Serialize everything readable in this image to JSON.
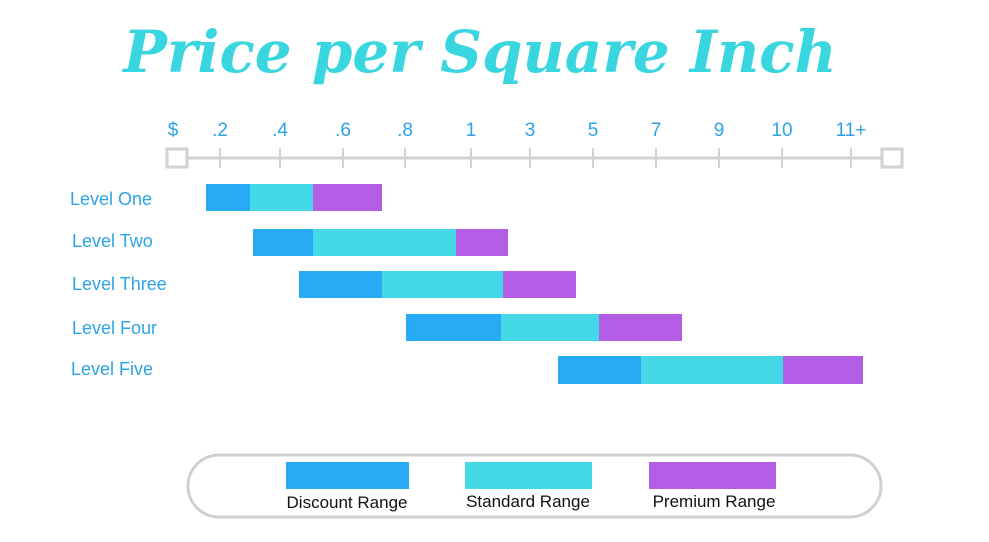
{
  "chart_data": {
    "type": "bar",
    "orientation": "horizontal-range",
    "title": "Price per Square Inch",
    "x_ticks": [
      "$",
      ".2",
      ".4",
      ".6",
      ".8",
      "1",
      "3",
      "5",
      "7",
      "9",
      "10",
      "11+"
    ],
    "categories": [
      "Level One",
      "Level Two",
      "Level Three",
      "Level Four",
      "Level Five"
    ],
    "series": [
      {
        "name": "Discount Range",
        "color": "#29aaf4",
        "ranges": [
          [
            ".15",
            ".3"
          ],
          [
            ".3",
            ".5"
          ],
          [
            ".45",
            ".7"
          ],
          [
            ".8",
            "1.9"
          ],
          [
            "4",
            "6.5"
          ]
        ]
      },
      {
        "name": "Standard Range",
        "color": "#45d8e6",
        "ranges": [
          [
            ".3",
            ".5"
          ],
          [
            ".5",
            "~1"
          ],
          [
            ".7",
            "~2"
          ],
          [
            "~2",
            "5"
          ],
          [
            "6.5",
            "10"
          ]
        ]
      },
      {
        "name": "Premium Range",
        "color": "#b35de6",
        "ranges": [
          [
            ".5",
            ".7"
          ],
          [
            "~1",
            "~2.5"
          ],
          [
            "~2",
            "4.5"
          ],
          [
            "5",
            "8"
          ],
          [
            "10",
            "~11.5"
          ]
        ]
      }
    ],
    "legend_position": "bottom",
    "colors": {
      "title": "#3ad6e0",
      "ticks": "#2ba3e6",
      "labels": "#2ba3e6",
      "axis": "#d2d2d2"
    }
  }
}
